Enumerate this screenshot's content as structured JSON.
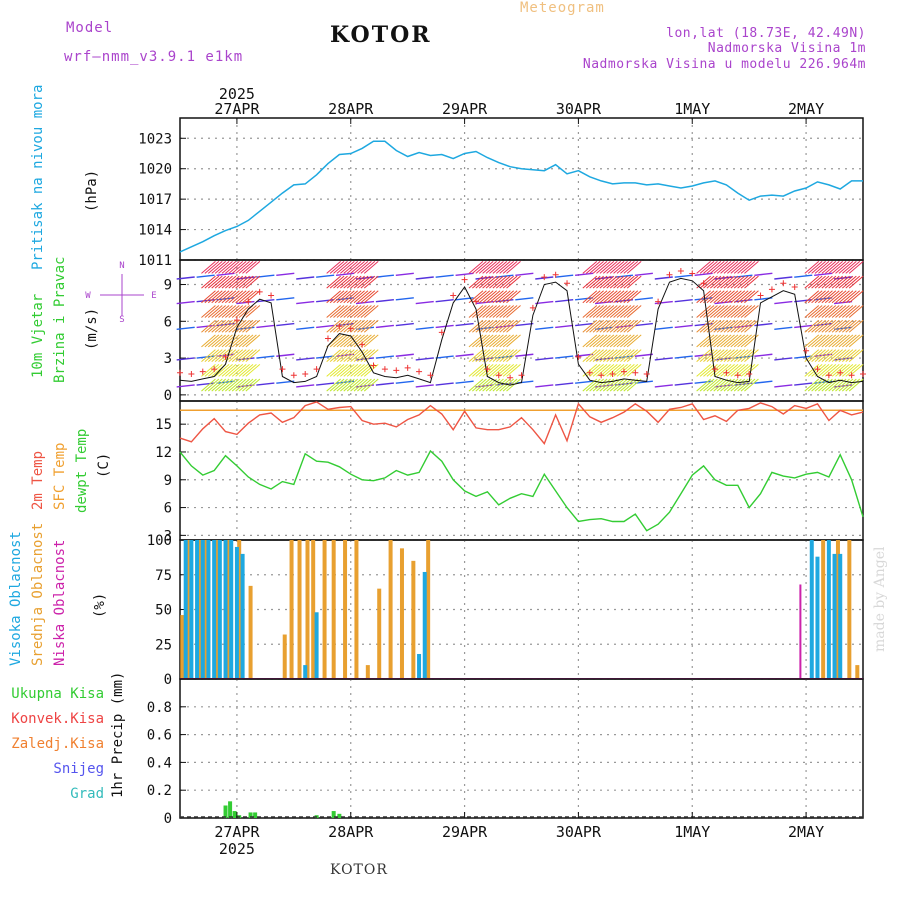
{
  "header": {
    "model_label": "Model",
    "model_name": "wrf–nmm_v3.9.1  e1km",
    "title": "KOTOR",
    "meteogram": "Meteogram",
    "lonlat": "lon,lat (18.73E, 42.49N)",
    "elev": "Nadmorska Visina 1m",
    "elev_model": "Nadmorska Visina u modelu 226.964m",
    "year_top": "2025",
    "year_bottom": "2025",
    "footer": "KOTOR",
    "credit": "made by Angel"
  },
  "panel_labels": {
    "pressure": [
      "Pritisak na nivou mora",
      "(hPa)"
    ],
    "wind": [
      "10m Vjetar",
      "Brzina i Pravac",
      "(m/s)"
    ],
    "temp": [
      "2m Temp",
      "SFC Temp",
      "dewpt Temp",
      "(C)"
    ],
    "cloud": [
      "Visoka Oblacnost",
      "Srednja Oblacnost",
      "Niska Oblacnost",
      "(%)"
    ],
    "precip_axis": "1hr Precip (mm)",
    "precip_legend": [
      "Ukupna Kisa",
      "Konvek.Kisa",
      "Zaledj.Kisa",
      "Snijeg",
      "Grad"
    ]
  },
  "colors": {
    "pressure": "#1ea8e0",
    "temp2m": "#ee5544",
    "sfc": "#f0a030",
    "dewpt": "#33cc33",
    "high_cloud": "#1ea8e0",
    "mid_cloud": "#e8a030",
    "low_cloud": "#cc22aa",
    "precip": "#33cc33",
    "title_orange": "#f0c080",
    "purple": "#aa44cc"
  },
  "chart_data": [
    {
      "type": "line",
      "name": "pressure",
      "x_ticks": [
        "27APR",
        "28APR",
        "29APR",
        "30APR",
        "1MAY",
        "2MAY"
      ],
      "ylim": [
        1011,
        1025
      ],
      "yticks": [
        1011,
        1014,
        1017,
        1020,
        1023
      ],
      "x_range_days": [
        -0.5,
        5.5
      ],
      "x": [
        -0.5,
        -0.4,
        -0.3,
        -0.2,
        -0.1,
        0,
        0.1,
        0.2,
        0.3,
        0.4,
        0.5,
        0.6,
        0.7,
        0.8,
        0.9,
        1.0,
        1.1,
        1.2,
        1.3,
        1.4,
        1.5,
        1.6,
        1.7,
        1.8,
        1.9,
        2.0,
        2.1,
        2.2,
        2.3,
        2.4,
        2.5,
        2.6,
        2.7,
        2.8,
        2.9,
        3.0,
        3.1,
        3.2,
        3.3,
        3.4,
        3.5,
        3.6,
        3.7,
        3.8,
        3.9,
        4.0,
        4.1,
        4.2,
        4.3,
        4.4,
        4.5,
        4.6,
        4.7,
        4.8,
        4.9,
        5.0,
        5.1,
        5.2,
        5.3,
        5.4,
        5.5
      ],
      "y": [
        1011.8,
        1012.3,
        1012.8,
        1013.4,
        1013.9,
        1014.3,
        1014.9,
        1015.8,
        1016.7,
        1017.6,
        1018.4,
        1018.5,
        1019.4,
        1020.5,
        1021.4,
        1021.5,
        1022.0,
        1022.7,
        1022.7,
        1021.8,
        1021.2,
        1021.6,
        1021.3,
        1021.4,
        1021.0,
        1021.5,
        1021.7,
        1021.1,
        1020.6,
        1020.2,
        1020.0,
        1019.9,
        1019.8,
        1020.4,
        1019.5,
        1019.8,
        1019.2,
        1018.8,
        1018.5,
        1018.6,
        1018.6,
        1018.4,
        1018.5,
        1018.3,
        1018.1,
        1018.3,
        1018.6,
        1018.8,
        1018.4,
        1017.6,
        1016.9,
        1017.3,
        1017.4,
        1017.3,
        1017.8,
        1018.1,
        1018.7,
        1018.4,
        1018.0,
        1018.8,
        1018.8
      ],
      "ylabel": "(hPa)"
    },
    {
      "type": "line",
      "name": "wind_speed",
      "ylim": [
        -0.5,
        11
      ],
      "yticks": [
        0,
        3,
        6,
        9
      ],
      "x": [
        -0.5,
        -0.4,
        -0.3,
        -0.2,
        -0.1,
        0,
        0.1,
        0.2,
        0.3,
        0.4,
        0.5,
        0.6,
        0.7,
        0.8,
        0.9,
        1.0,
        1.1,
        1.2,
        1.3,
        1.4,
        1.5,
        1.6,
        1.7,
        1.8,
        1.9,
        2.0,
        2.1,
        2.2,
        2.3,
        2.4,
        2.5,
        2.6,
        2.7,
        2.8,
        2.9,
        3.0,
        3.1,
        3.2,
        3.3,
        3.4,
        3.5,
        3.6,
        3.7,
        3.8,
        3.9,
        4.0,
        4.1,
        4.2,
        4.3,
        4.4,
        4.5,
        4.6,
        4.7,
        4.8,
        4.9,
        5.0,
        5.1,
        5.2,
        5.3,
        5.4,
        5.5
      ],
      "y": [
        1.2,
        1.1,
        1.3,
        1.5,
        2.5,
        5.5,
        7.0,
        7.8,
        7.5,
        1.5,
        1.0,
        1.1,
        1.5,
        4.0,
        5.0,
        4.8,
        3.5,
        1.8,
        1.5,
        1.4,
        1.6,
        1.3,
        1.0,
        4.5,
        7.5,
        8.8,
        7.0,
        1.5,
        1.0,
        0.8,
        1.0,
        6.5,
        9.0,
        9.2,
        8.5,
        2.5,
        1.2,
        1.0,
        1.1,
        1.3,
        1.2,
        1.1,
        7.0,
        9.2,
        9.5,
        9.3,
        8.5,
        1.5,
        1.2,
        1.0,
        1.1,
        7.5,
        8.0,
        8.5,
        8.2,
        3.0,
        1.5,
        1.0,
        1.2,
        1.0,
        1.1
      ]
    },
    {
      "type": "line",
      "name": "temperature",
      "ylim": [
        2.5,
        17.5
      ],
      "yticks": [
        3,
        6,
        9,
        12,
        15
      ],
      "sfc_temp": 16.5,
      "x": [
        -0.5,
        -0.4,
        -0.3,
        -0.2,
        -0.1,
        0,
        0.1,
        0.2,
        0.3,
        0.4,
        0.5,
        0.6,
        0.7,
        0.8,
        0.9,
        1.0,
        1.1,
        1.2,
        1.3,
        1.4,
        1.5,
        1.6,
        1.7,
        1.8,
        1.9,
        2.0,
        2.1,
        2.2,
        2.3,
        2.4,
        2.5,
        2.6,
        2.7,
        2.8,
        2.9,
        3.0,
        3.1,
        3.2,
        3.3,
        3.4,
        3.5,
        3.6,
        3.7,
        3.8,
        3.9,
        4.0,
        4.1,
        4.2,
        4.3,
        4.4,
        4.5,
        4.6,
        4.7,
        4.8,
        4.9,
        5.0,
        5.1,
        5.2,
        5.3,
        5.4,
        5.5
      ],
      "t2m": [
        13.5,
        13.1,
        14.5,
        15.6,
        14.2,
        13.9,
        15.1,
        16.0,
        16.2,
        15.2,
        15.7,
        17.0,
        17.4,
        16.6,
        16.8,
        16.9,
        15.4,
        15.0,
        15.1,
        14.7,
        15.5,
        16.0,
        17.0,
        16.1,
        14.4,
        16.4,
        14.6,
        14.4,
        14.4,
        14.7,
        15.7,
        14.4,
        12.9,
        16.0,
        13.2,
        17.2,
        15.8,
        15.2,
        15.7,
        16.3,
        17.2,
        16.4,
        15.2,
        16.6,
        16.8,
        17.2,
        15.5,
        15.9,
        15.3,
        16.5,
        16.7,
        17.3,
        16.9,
        16.1,
        17.0,
        16.7,
        17.2,
        15.4,
        16.5,
        16.0,
        16.3
      ],
      "dewpt": [
        12.0,
        10.5,
        9.5,
        10.0,
        11.6,
        10.5,
        9.3,
        8.5,
        8.0,
        8.8,
        8.5,
        11.8,
        11.0,
        10.9,
        10.4,
        9.6,
        9.0,
        8.9,
        9.2,
        10.0,
        9.5,
        9.8,
        12.1,
        11.0,
        9.0,
        7.8,
        7.2,
        7.7,
        6.3,
        7.0,
        7.5,
        7.2,
        9.6,
        7.8,
        6.0,
        4.5,
        4.7,
        4.8,
        4.5,
        4.5,
        5.3,
        3.5,
        4.2,
        5.5,
        7.5,
        9.5,
        10.5,
        9.0,
        8.4,
        8.4,
        6.0,
        7.5,
        9.8,
        9.4,
        9.2,
        9.6,
        9.8,
        9.3,
        11.7,
        9.0,
        5.0
      ]
    },
    {
      "type": "bar",
      "name": "cloud_cover",
      "ylim": [
        0,
        100
      ],
      "yticks": [
        0,
        25,
        50,
        75,
        100
      ],
      "high_bars": [
        {
          "x": -0.45,
          "v": 100
        },
        {
          "x": -0.4,
          "v": 100
        },
        {
          "x": -0.35,
          "v": 100
        },
        {
          "x": -0.3,
          "v": 100
        },
        {
          "x": -0.25,
          "v": 100
        },
        {
          "x": -0.2,
          "v": 100
        },
        {
          "x": -0.15,
          "v": 100
        },
        {
          "x": -0.1,
          "v": 100
        },
        {
          "x": -0.05,
          "v": 100
        },
        {
          "x": 0.0,
          "v": 95
        },
        {
          "x": 0.05,
          "v": 90
        },
        {
          "x": 0.6,
          "v": 10
        },
        {
          "x": 0.7,
          "v": 48
        },
        {
          "x": 1.6,
          "v": 18
        },
        {
          "x": 1.65,
          "v": 77
        },
        {
          "x": 5.05,
          "v": 100
        },
        {
          "x": 5.1,
          "v": 88
        },
        {
          "x": 5.2,
          "v": 100
        },
        {
          "x": 5.25,
          "v": 90
        },
        {
          "x": 5.3,
          "v": 90
        }
      ],
      "mid_bars": [
        {
          "x": -0.48,
          "v": 46
        },
        {
          "x": -0.42,
          "v": 100
        },
        {
          "x": -0.33,
          "v": 100
        },
        {
          "x": -0.27,
          "v": 100
        },
        {
          "x": -0.17,
          "v": 100
        },
        {
          "x": -0.08,
          "v": 100
        },
        {
          "x": 0.02,
          "v": 100
        },
        {
          "x": 0.12,
          "v": 67
        },
        {
          "x": 0.42,
          "v": 32
        },
        {
          "x": 0.48,
          "v": 100
        },
        {
          "x": 0.55,
          "v": 100
        },
        {
          "x": 0.62,
          "v": 100
        },
        {
          "x": 0.67,
          "v": 100
        },
        {
          "x": 0.77,
          "v": 100
        },
        {
          "x": 0.85,
          "v": 100
        },
        {
          "x": 0.95,
          "v": 100
        },
        {
          "x": 1.05,
          "v": 100
        },
        {
          "x": 1.15,
          "v": 10
        },
        {
          "x": 1.25,
          "v": 65
        },
        {
          "x": 1.35,
          "v": 100
        },
        {
          "x": 1.45,
          "v": 94
        },
        {
          "x": 1.55,
          "v": 85
        },
        {
          "x": 1.68,
          "v": 100
        },
        {
          "x": 5.15,
          "v": 100
        },
        {
          "x": 5.28,
          "v": 100
        },
        {
          "x": 5.38,
          "v": 100
        },
        {
          "x": 5.45,
          "v": 10
        }
      ],
      "low_bars": [
        {
          "x": 4.95,
          "v": 68
        }
      ]
    },
    {
      "type": "bar",
      "name": "precip",
      "ylim": [
        0,
        1.0
      ],
      "yticks": [
        0,
        0.2,
        0.4,
        0.6,
        0.8
      ],
      "bars": [
        {
          "x": -0.1,
          "v": 0.09
        },
        {
          "x": -0.06,
          "v": 0.12
        },
        {
          "x": -0.02,
          "v": 0.05
        },
        {
          "x": 0.02,
          "v": 0.02
        },
        {
          "x": 0.12,
          "v": 0.04
        },
        {
          "x": 0.16,
          "v": 0.04
        },
        {
          "x": 0.7,
          "v": 0.02
        },
        {
          "x": 0.85,
          "v": 0.05
        },
        {
          "x": 0.9,
          "v": 0.03
        }
      ]
    }
  ]
}
